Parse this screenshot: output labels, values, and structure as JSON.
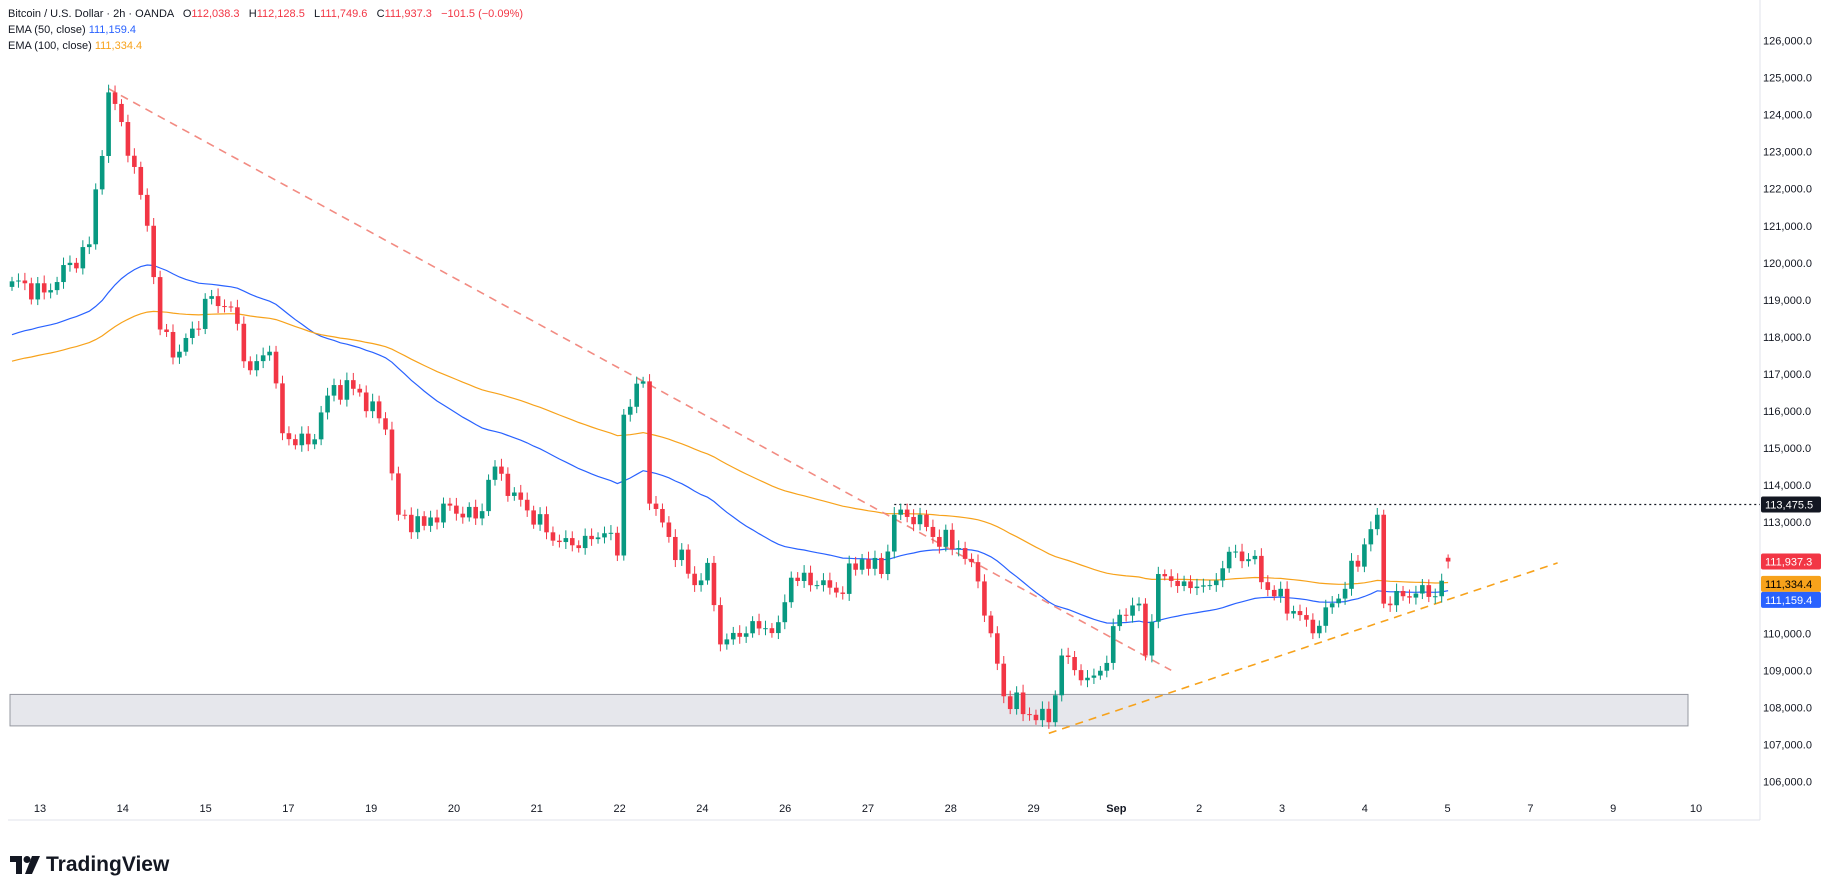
{
  "legend": {
    "title": "Bitcoin / U.S. Dollar · 2h · OANDA",
    "o_label": "O",
    "o_value": "112,038.3",
    "h_label": "H",
    "h_value": "112,128.5",
    "l_label": "L",
    "l_value": "111,749.6",
    "c_label": "C",
    "c_value": "111,937.3",
    "change": "−101.5 (−0.09%)",
    "ema50_label": "EMA (50, close)",
    "ema50_value": "111,159.4",
    "ema100_label": "EMA (100, close)",
    "ema100_value": "111,334.4"
  },
  "brand": "TradingView",
  "colors": {
    "up": "#089981",
    "down": "#f23645",
    "ema50": "#2962ff",
    "ema100": "#f7a21b",
    "trend_down": "#f28b82",
    "trend_up": "#f7a21b",
    "zone": "#d1d4dc"
  },
  "chart_data": {
    "type": "candlestick",
    "ylim": [
      105500,
      126500
    ],
    "y_ticks": [
      "126,000.0",
      "125,000.0",
      "124,000.0",
      "123,000.0",
      "122,000.0",
      "121,000.0",
      "120,000.0",
      "119,000.0",
      "118,000.0",
      "117,000.0",
      "116,000.0",
      "115,000.0",
      "114,000.0",
      "113,000.0",
      "112,000.0",
      "111,000.0",
      "110,000.0",
      "109,000.0",
      "108,000.0",
      "107,000.0",
      "106,000.0"
    ],
    "x_ticks": [
      {
        "label": "13",
        "pos": 3
      },
      {
        "label": "14",
        "pos": 15
      },
      {
        "label": "15",
        "pos": 27
      },
      {
        "label": "17",
        "pos": 39
      },
      {
        "label": "19",
        "pos": 51
      },
      {
        "label": "20",
        "pos": 63
      },
      {
        "label": "21",
        "pos": 75
      },
      {
        "label": "22",
        "pos": 87
      },
      {
        "label": "24",
        "pos": 99
      },
      {
        "label": "26",
        "pos": 111
      },
      {
        "label": "27",
        "pos": 123
      },
      {
        "label": "28",
        "pos": 135
      },
      {
        "label": "29",
        "pos": 147
      },
      {
        "label": "Sep",
        "pos": 159
      },
      {
        "label": "2",
        "pos": 171
      },
      {
        "label": "3",
        "pos": 183
      },
      {
        "label": "4",
        "pos": 195
      },
      {
        "label": "5",
        "pos": 207
      },
      {
        "label": "7",
        "pos": 219
      },
      {
        "label": "9",
        "pos": 231
      },
      {
        "label": "10",
        "pos": 243
      }
    ],
    "candle_count": 224,
    "anchors": [
      [
        0,
        119500
      ],
      [
        5,
        119200
      ],
      [
        9,
        120000
      ],
      [
        12,
        120500
      ],
      [
        15,
        124600
      ],
      [
        17,
        123800
      ],
      [
        21,
        121000
      ],
      [
        23,
        118200
      ],
      [
        26,
        117600
      ],
      [
        31,
        119100
      ],
      [
        34,
        118800
      ],
      [
        37,
        117100
      ],
      [
        40,
        117600
      ],
      [
        42,
        115400
      ],
      [
        46,
        115100
      ],
      [
        50,
        116700
      ],
      [
        54,
        116500
      ],
      [
        58,
        115500
      ],
      [
        60,
        113200
      ],
      [
        64,
        112900
      ],
      [
        67,
        113500
      ],
      [
        72,
        113100
      ],
      [
        75,
        114500
      ],
      [
        78,
        113800
      ],
      [
        84,
        112500
      ],
      [
        88,
        112300
      ],
      [
        92,
        112700
      ],
      [
        94,
        112100
      ],
      [
        95,
        115900
      ],
      [
        98,
        116800
      ],
      [
        99,
        113500
      ],
      [
        102,
        112600
      ],
      [
        106,
        111300
      ],
      [
        108,
        111900
      ],
      [
        110,
        109700
      ],
      [
        114,
        110000
      ],
      [
        119,
        110300
      ],
      [
        121,
        111500
      ],
      [
        125,
        111300
      ],
      [
        128,
        111100
      ],
      [
        132,
        112000
      ],
      [
        135,
        111600
      ],
      [
        137,
        113200
      ],
      [
        141,
        113200
      ],
      [
        143,
        112600
      ],
      [
        147,
        112300
      ],
      [
        150,
        111400
      ],
      [
        152,
        110000
      ],
      [
        154,
        108300
      ],
      [
        158,
        107800
      ],
      [
        161,
        107600
      ],
      [
        163,
        109400
      ],
      [
        167,
        108800
      ],
      [
        170,
        109200
      ],
      [
        172,
        110500
      ],
      [
        175,
        110800
      ],
      [
        176,
        109400
      ],
      [
        178,
        111600
      ],
      [
        182,
        111400
      ],
      [
        186,
        111300
      ],
      [
        189,
        112200
      ],
      [
        192,
        112000
      ],
      [
        196,
        111000
      ],
      [
        199,
        110600
      ],
      [
        202,
        110000
      ],
      [
        204,
        110700
      ],
      [
        207,
        111200
      ],
      [
        210,
        112400
      ],
      [
        212,
        113200
      ],
      [
        213,
        110800
      ],
      [
        216,
        111000
      ],
      [
        219,
        111300
      ],
      [
        221,
        111000
      ],
      [
        223,
        111937
      ]
    ],
    "last_candle": {
      "o": 112038.3,
      "h": 112128.5,
      "l": 111749.6,
      "c": 111937.3
    },
    "series": [
      {
        "name": "EMA (50, close)",
        "last": 111159.4,
        "start": 118000
      },
      {
        "name": "EMA (100, close)",
        "last": 111334.4,
        "start": 117300
      }
    ],
    "trendlines": [
      {
        "kind": "descending",
        "from": [
          15,
          124700
        ],
        "to": [
          180,
          109000
        ]
      },
      {
        "kind": "ascending",
        "from": [
          161,
          107300
        ],
        "to": [
          240,
          111900
        ]
      }
    ],
    "support_zone": [
      107500,
      108350
    ],
    "resistance_level": 113475.5,
    "price_labels": [
      {
        "value": "113,475.5",
        "price": 113475.5,
        "bg": "#131722",
        "fg": "#ffffff"
      },
      {
        "value": "111,937.3",
        "price": 111937.3,
        "bg": "#f23645",
        "fg": "#ffffff"
      },
      {
        "value": "111,334.4",
        "price": 111334.4,
        "bg": "#f7a21b",
        "fg": "#000000"
      },
      {
        "value": "111,159.4",
        "price": 111159.4,
        "bg": "#2962ff",
        "fg": "#ffffff"
      }
    ]
  }
}
